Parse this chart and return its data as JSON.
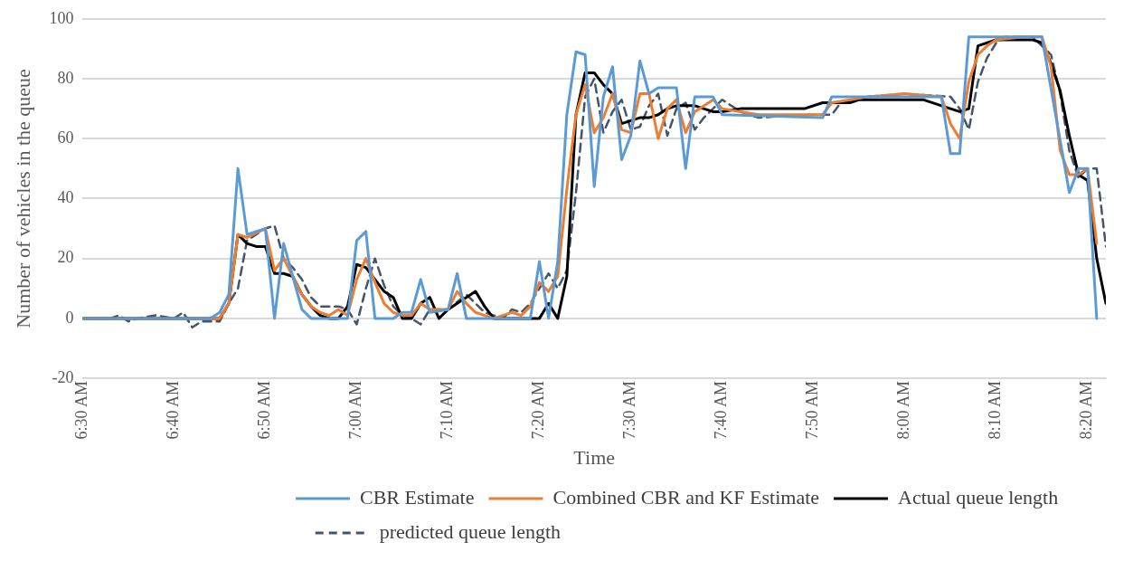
{
  "chart_data": {
    "type": "line",
    "xlabel": "Time",
    "ylabel": "Number of vehicles in the queue",
    "xlim": [
      6.5,
      8.3667
    ],
    "ylim": [
      -20,
      100
    ],
    "xticks": [
      {
        "value": 6.5,
        "label": "6:30 AM"
      },
      {
        "value": 6.6667,
        "label": "6:40 AM"
      },
      {
        "value": 6.8333,
        "label": "6:50 AM"
      },
      {
        "value": 7,
        "label": "7:00 AM"
      },
      {
        "value": 7.1667,
        "label": "7:10 AM"
      },
      {
        "value": 7.3333,
        "label": "7:20 AM"
      },
      {
        "value": 7.5,
        "label": "7:30 AM"
      },
      {
        "value": 7.6667,
        "label": "7:40 AM"
      },
      {
        "value": 7.8333,
        "label": "7:50 AM"
      },
      {
        "value": 8,
        "label": "8:00 AM"
      },
      {
        "value": 8.1667,
        "label": "8:10 AM"
      },
      {
        "value": 8.3333,
        "label": "8:20 AM"
      }
    ],
    "yticks": [
      -20,
      0,
      20,
      40,
      60,
      80,
      100
    ],
    "grid": "y",
    "legend": "bottom",
    "marker": "none",
    "series": [
      {
        "name": "CBR Estimate",
        "color": "#5b9bd5",
        "line_style": "solid",
        "x": [
          6.5,
          6.7333,
          6.75,
          6.7667,
          6.7833,
          6.8,
          6.8167,
          6.8333,
          6.85,
          6.8667,
          6.9,
          6.9167,
          6.9833,
          7,
          7.0167,
          7.0333,
          7.0667,
          7.0833,
          7.1,
          7.1167,
          7.1333,
          7.1667,
          7.1833,
          7.2,
          7.3167,
          7.3333,
          7.35,
          7.3667,
          7.3833,
          7.4,
          7.4167,
          7.4333,
          7.45,
          7.4667,
          7.4833,
          7.5,
          7.5167,
          7.5333,
          7.55,
          7.5833,
          7.6,
          7.6167,
          7.65,
          7.6667,
          7.85,
          7.8667,
          8.0667,
          8.0833,
          8.1,
          8.1167,
          8.25,
          8.3,
          8.3167,
          8.3333,
          8.35
        ],
        "values": [
          0,
          0,
          2,
          8,
          50,
          28,
          29,
          30,
          0,
          25,
          3,
          0,
          0,
          26,
          29,
          0,
          0,
          2,
          2,
          13,
          2,
          3,
          15,
          0,
          0,
          19,
          0,
          19,
          68,
          89,
          88,
          44,
          74,
          84,
          53,
          61,
          86,
          75,
          77,
          77,
          50,
          74,
          74,
          68,
          67,
          74,
          74,
          55,
          55,
          94,
          94,
          42,
          50,
          50,
          0
        ]
      },
      {
        "name": "Combined CBR and KF Estimate",
        "color": "#ed7d31",
        "line_style": "solid",
        "x": [
          6.5,
          6.75,
          6.7667,
          6.7833,
          6.8,
          6.8333,
          6.85,
          6.8667,
          6.9,
          6.9167,
          6.9333,
          6.95,
          6.9667,
          6.9833,
          7,
          7.0167,
          7.0333,
          7.05,
          7.0667,
          7.0833,
          7.1,
          7.1167,
          7.1333,
          7.1667,
          7.1833,
          7.2,
          7.2167,
          7.2333,
          7.25,
          7.2667,
          7.2833,
          7.3,
          7.3167,
          7.3333,
          7.35,
          7.3667,
          7.3833,
          7.4,
          7.4167,
          7.4333,
          7.45,
          7.4667,
          7.4833,
          7.5,
          7.5167,
          7.5333,
          7.55,
          7.5667,
          7.5833,
          7.6,
          7.6167,
          7.65,
          7.6667,
          7.7,
          7.7333,
          7.8167,
          7.85,
          7.8667,
          7.9,
          7.9333,
          8,
          8.0667,
          8.0833,
          8.1,
          8.1167,
          8.1333,
          8.15,
          8.1667,
          8.2167,
          8.25,
          8.2667,
          8.2833,
          8.3,
          8.3167,
          8.3333,
          8.35
        ],
        "values": [
          0,
          0,
          5,
          28,
          27,
          30,
          16,
          20,
          8,
          4,
          2,
          1,
          3,
          1,
          13,
          20,
          12,
          5,
          2,
          1,
          1,
          5,
          3,
          3,
          9,
          5,
          2,
          1,
          0,
          1,
          2,
          1,
          4,
          12,
          9,
          14,
          43,
          68,
          78,
          62,
          67,
          75,
          63,
          62,
          75,
          75,
          60,
          70,
          73,
          62,
          69,
          73,
          70,
          69,
          68,
          68,
          68,
          72,
          73,
          74,
          75,
          74,
          65,
          60,
          79,
          88,
          91,
          93,
          94,
          94,
          84,
          56,
          48,
          48,
          50,
          25
        ]
      },
      {
        "name": "Actual queue length",
        "color": "#000000",
        "line_style": "solid",
        "x": [
          6.5,
          6.75,
          6.7667,
          6.7833,
          6.8,
          6.8167,
          6.8333,
          6.85,
          6.8667,
          6.8833,
          6.9,
          6.9167,
          6.9333,
          6.95,
          6.9667,
          6.9833,
          7,
          7.0167,
          7.0333,
          7.05,
          7.0667,
          7.0833,
          7.1,
          7.1167,
          7.1333,
          7.15,
          7.1667,
          7.1833,
          7.2,
          7.2167,
          7.2333,
          7.25,
          7.3333,
          7.35,
          7.3667,
          7.3833,
          7.4,
          7.4167,
          7.4333,
          7.45,
          7.4667,
          7.4833,
          7.5,
          7.5167,
          7.5333,
          7.55,
          7.5667,
          7.5833,
          7.6167,
          7.6333,
          7.65,
          7.6667,
          7.7,
          7.8167,
          7.85,
          7.9,
          7.9167,
          8.0333,
          8.0667,
          8.1,
          8.1167,
          8.1333,
          8.1667,
          8.2333,
          8.25,
          8.2667,
          8.2833,
          8.3,
          8.3167,
          8.3333,
          8.35,
          8.3667
        ],
        "values": [
          0,
          0,
          5,
          28,
          25,
          24,
          24,
          15,
          15,
          14,
          8,
          4,
          1,
          0,
          0,
          4,
          18,
          17,
          13,
          9,
          7,
          0,
          0,
          5,
          7,
          0,
          3,
          5,
          7,
          9,
          4,
          0,
          0,
          5,
          0,
          14,
          68,
          82,
          82,
          78,
          75,
          65,
          66,
          67,
          67,
          68,
          70,
          71,
          71,
          70,
          69,
          69,
          70,
          70,
          72,
          72,
          73,
          73,
          71,
          69,
          70,
          91,
          93,
          93,
          92,
          85,
          76,
          61,
          48,
          46,
          20,
          5
        ]
      },
      {
        "name": "predicted queue length",
        "color": "#44546a",
        "line_style": "dashed",
        "x": [
          6.5,
          6.55,
          6.5667,
          6.5833,
          6.6,
          6.6333,
          6.6667,
          6.6833,
          6.7,
          6.7167,
          6.75,
          6.7667,
          6.7833,
          6.8,
          6.8333,
          6.85,
          6.8667,
          6.8833,
          6.9,
          6.9167,
          6.9333,
          6.9667,
          6.9833,
          7,
          7.0167,
          7.0333,
          7.05,
          7.0667,
          7.0833,
          7.1,
          7.1167,
          7.1333,
          7.1667,
          7.2,
          7.2167,
          7.2333,
          7.25,
          7.2667,
          7.2833,
          7.3,
          7.3167,
          7.3333,
          7.35,
          7.3667,
          7.3833,
          7.4,
          7.4167,
          7.4333,
          7.45,
          7.4667,
          7.4833,
          7.5,
          7.5167,
          7.5333,
          7.55,
          7.5667,
          7.5833,
          7.6,
          7.6167,
          7.6333,
          7.65,
          7.6667,
          7.6833,
          7.7,
          7.7333,
          7.8167,
          7.8333,
          7.8667,
          7.8833,
          7.9333,
          8,
          8.0833,
          8.1,
          8.1167,
          8.1333,
          8.15,
          8.1667,
          8.1833,
          8.2333,
          8.2667,
          8.2833,
          8.3,
          8.3167,
          8.3333,
          8.35,
          8.3667
        ],
        "values": [
          0,
          0,
          1,
          -1,
          0,
          1,
          0,
          2,
          -3,
          -1,
          -1,
          5,
          10,
          26,
          30,
          31,
          20,
          17,
          13,
          7,
          4,
          4,
          3,
          -2,
          10,
          20,
          11,
          4,
          1,
          0,
          -2,
          3,
          3,
          8,
          5,
          2,
          1,
          0,
          3,
          2,
          5,
          10,
          15,
          10,
          16,
          42,
          74,
          80,
          62,
          69,
          73,
          63,
          64,
          71,
          75,
          61,
          70,
          72,
          63,
          67,
          70,
          73,
          71,
          69,
          67,
          68,
          68,
          68,
          72,
          74,
          75,
          74,
          70,
          63,
          79,
          87,
          92,
          94,
          94,
          88,
          75,
          56,
          47,
          50,
          50,
          24
        ]
      }
    ]
  }
}
